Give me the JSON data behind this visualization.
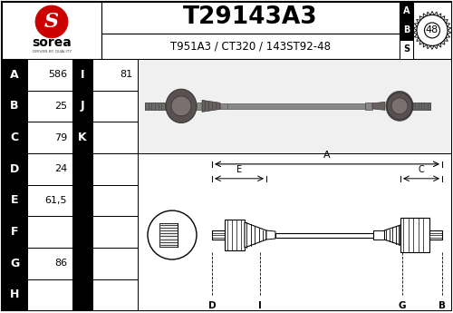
{
  "title": "T29143A3",
  "subtitle": "T951A3 / CT320 / 143ST92-48",
  "abs_number": "48",
  "table_rows": [
    {
      "letter": "A",
      "value": "586",
      "letter2": "I",
      "value2": "81"
    },
    {
      "letter": "B",
      "value": "25",
      "letter2": "J",
      "value2": ""
    },
    {
      "letter": "C",
      "value": "79",
      "letter2": "K",
      "value2": ""
    },
    {
      "letter": "D",
      "value": "24",
      "letter2": "",
      "value2": ""
    },
    {
      "letter": "E",
      "value": "61,5",
      "letter2": "",
      "value2": ""
    },
    {
      "letter": "F",
      "value": "",
      "letter2": "",
      "value2": ""
    },
    {
      "letter": "G",
      "value": "86",
      "letter2": "",
      "value2": ""
    },
    {
      "letter": "H",
      "value": "",
      "letter2": "",
      "value2": ""
    }
  ],
  "bg_color": "#ffffff"
}
